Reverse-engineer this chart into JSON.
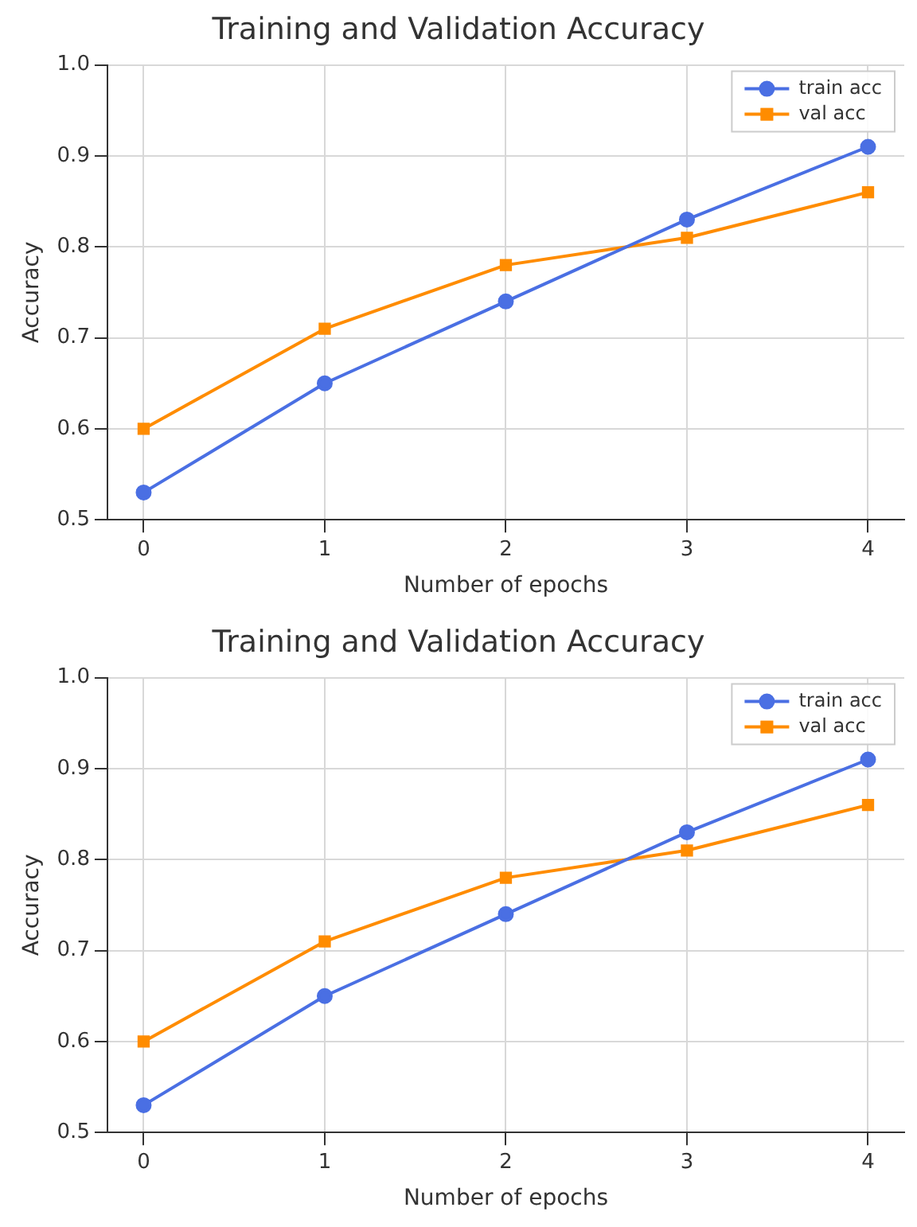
{
  "chart_data": [
    {
      "type": "line",
      "title": "Training and Validation Accuracy",
      "xlabel": "Number of epochs",
      "ylabel": "Accuracy",
      "x": [
        0,
        1,
        2,
        3,
        4
      ],
      "xlim": [
        -0.2,
        4.2
      ],
      "xticks": [
        0,
        1,
        2,
        3,
        4
      ],
      "ylim": [
        0.5,
        1.0
      ],
      "yticks": [
        {
          "value": 0.5,
          "label": "0.5"
        },
        {
          "value": 0.6,
          "label": "0.6"
        },
        {
          "value": 0.7,
          "label": "0.7"
        },
        {
          "value": 0.8,
          "label": "0.8"
        },
        {
          "value": 0.9,
          "label": "0.9"
        },
        {
          "value": 1.0,
          "label": "1.0"
        }
      ],
      "grid": true,
      "legend": "top right",
      "line_style": "solid",
      "series": [
        {
          "name": "train acc",
          "color": "#4a6fe3",
          "marker": "circle",
          "values": [
            0.53,
            0.65,
            0.74,
            0.83,
            0.91
          ]
        },
        {
          "name": "val acc",
          "color": "#ff8c00",
          "marker": "square",
          "values": [
            0.6,
            0.71,
            0.78,
            0.81,
            0.86
          ]
        }
      ]
    },
    {
      "type": "line",
      "title": "Training and Validation Accuracy",
      "xlabel": "Number of epochs",
      "ylabel": "Accuracy",
      "x": [
        0,
        1,
        2,
        3,
        4
      ],
      "xlim": [
        -0.2,
        4.2
      ],
      "xticks": [
        0,
        1,
        2,
        3,
        4
      ],
      "ylim": [
        0.5,
        1.0
      ],
      "yticks": [
        {
          "value": 0.5,
          "label": "0.5"
        },
        {
          "value": 0.6,
          "label": "0.6"
        },
        {
          "value": 0.7,
          "label": "0.7"
        },
        {
          "value": 0.8,
          "label": "0.8"
        },
        {
          "value": 0.9,
          "label": "0.9"
        },
        {
          "value": 1.0,
          "label": "1.0"
        }
      ],
      "grid": true,
      "legend": "top right",
      "line_style": "solid",
      "series": [
        {
          "name": "train acc",
          "color": "#4a6fe3",
          "marker": "circle",
          "values": [
            0.53,
            0.65,
            0.74,
            0.83,
            0.91
          ]
        },
        {
          "name": "val acc",
          "color": "#ff8c00",
          "marker": "square",
          "values": [
            0.6,
            0.71,
            0.78,
            0.81,
            0.86
          ]
        }
      ]
    }
  ]
}
